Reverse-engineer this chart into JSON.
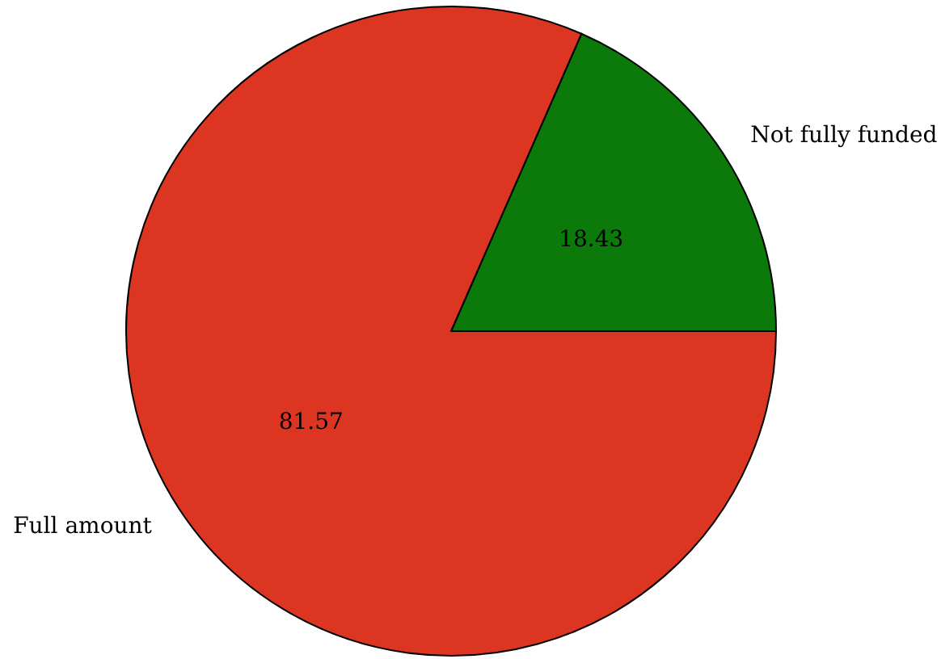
{
  "chart_data": {
    "type": "pie",
    "categories": [
      "Not fully funded",
      "Full amount"
    ],
    "values": [
      18.43,
      81.57
    ],
    "colors": [
      "#0b7a0b",
      "#dc3522"
    ],
    "data_labels": true
  }
}
